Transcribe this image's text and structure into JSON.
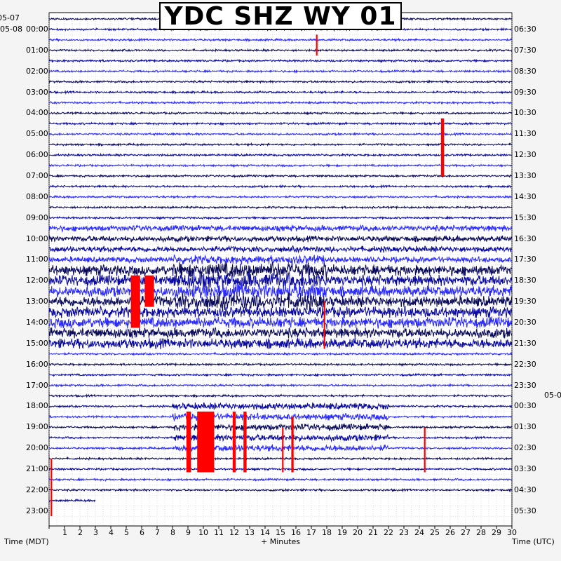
{
  "chart_data": {
    "type": "helicorder",
    "title": "YDC SHZ WY 01",
    "xlabel": "+ Minutes",
    "left_axis_label": "Time (MDT)",
    "right_axis_label": "Time (UTC)",
    "x_ticks": [
      "1",
      "2",
      "3",
      "4",
      "5",
      "6",
      "7",
      "8",
      "9",
      "10",
      "11",
      "12",
      "13",
      "14",
      "15",
      "16",
      "17",
      "18",
      "19",
      "20",
      "21",
      "22",
      "23",
      "24",
      "25",
      "26",
      "27",
      "28",
      "29",
      "30"
    ],
    "xlim": [
      0,
      30
    ],
    "left_date_labels": [
      "05-07",
      "05-08"
    ],
    "right_date_label": "05-0",
    "left_times": [
      "00:00",
      "01:00",
      "02:00",
      "03:00",
      "04:00",
      "05:00",
      "06:00",
      "07:00",
      "08:00",
      "09:00",
      "10:00",
      "11:00",
      "12:00",
      "13:00",
      "14:00",
      "15:00",
      "16:00",
      "17:00",
      "18:00",
      "19:00",
      "20:00",
      "21:00",
      "22:00",
      "23:00"
    ],
    "right_times": [
      "06:30",
      "07:30",
      "08:30",
      "09:30",
      "10:30",
      "11:30",
      "12:30",
      "13:30",
      "14:30",
      "15:30",
      "16:30",
      "17:30",
      "18:30",
      "19:30",
      "20:30",
      "21:30",
      "22:30",
      "23:30",
      "00:30",
      "01:30",
      "02:30",
      "03:30",
      "04:30",
      "05:30"
    ],
    "trace_colors": [
      "#0a0a5a",
      "#0a0aa0",
      "#2a2aff"
    ],
    "clip_color": "#ff0000",
    "grid": true
  }
}
